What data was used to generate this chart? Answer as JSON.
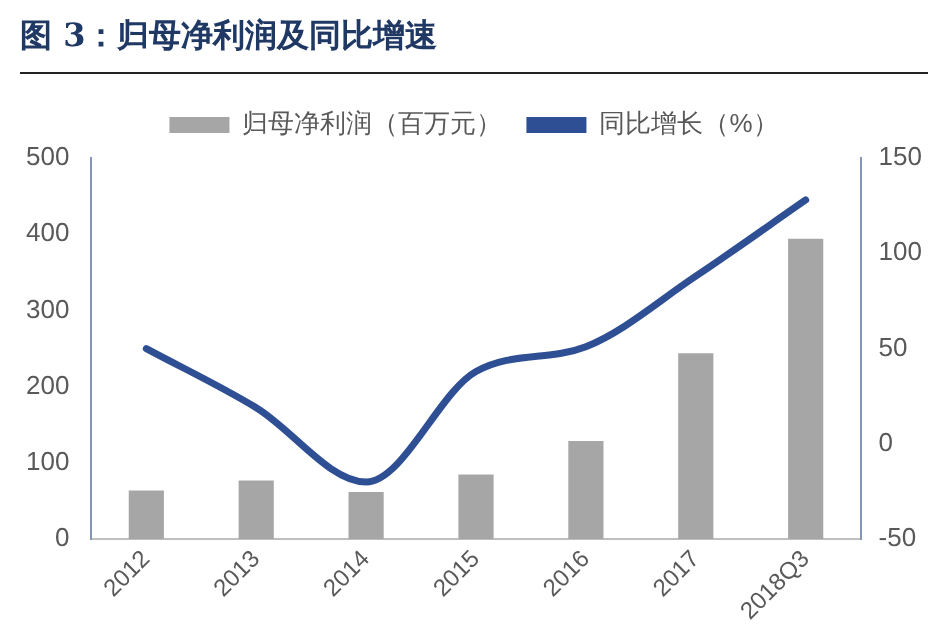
{
  "chart_data": {
    "type": "bar",
    "title": "图 3：归母净利润及同比增速",
    "categories": [
      "2012",
      "2013",
      "2014",
      "2015",
      "2016",
      "2017",
      "2018Q3"
    ],
    "series": [
      {
        "name": "归母净利润（百万元）",
        "color": "#a6a6a6",
        "values": [
          64,
          77,
          62,
          85,
          129,
          244,
          394
        ]
      },
      {
        "name": "同比增长（%）",
        "type": "line",
        "axis": "y2",
        "color": "#2f4f94",
        "values": [
          50,
          19,
          -20,
          38,
          51,
          88,
          128
        ]
      }
    ],
    "ylim": [
      0,
      500
    ],
    "yticks": [
      0,
      100,
      200,
      300,
      400,
      500
    ],
    "y2lim": [
      -50,
      150
    ],
    "y2ticks": [
      -50,
      0,
      50,
      100,
      150
    ],
    "grid": false,
    "legend": "top",
    "marker": "none",
    "line_style": "solid"
  }
}
